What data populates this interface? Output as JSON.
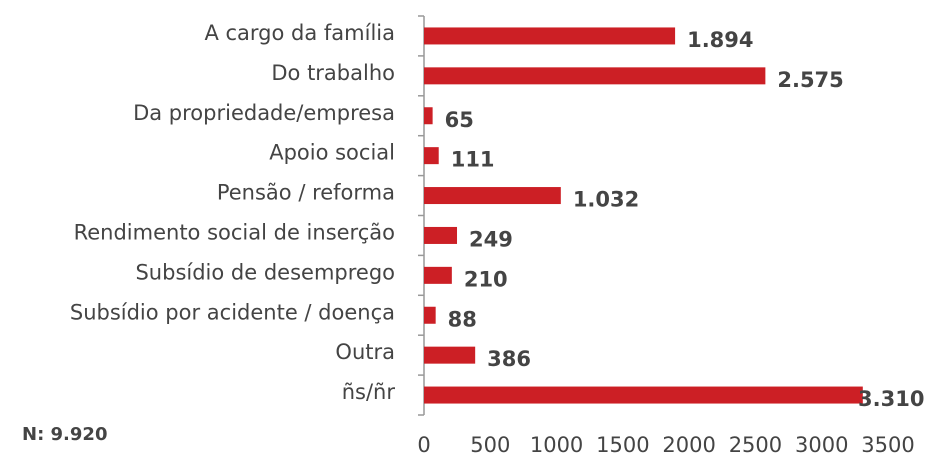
{
  "chart_data": {
    "type": "bar",
    "orientation": "horizontal",
    "categories": [
      "A cargo da família",
      "Do trabalho",
      "Da propriedade/empresa",
      "Apoio social",
      "Pensão / reforma",
      "Rendimento social de inserção",
      "Subsídio de desemprego",
      "Subsídio por acidente / doença",
      "Outra",
      "ñs/ñr"
    ],
    "values": [
      1894,
      2575,
      65,
      111,
      1032,
      249,
      210,
      88,
      386,
      3310
    ],
    "value_labels": [
      "1.894",
      "2.575",
      "65",
      "111",
      "1.032",
      "249",
      "210",
      "88",
      "386",
      "3.310"
    ],
    "color": "#cc1f25",
    "xlim": [
      0,
      3500
    ],
    "xticks": [
      0,
      500,
      1000,
      1500,
      2000,
      2500,
      3000,
      3500
    ],
    "annotation": "N: 9.920"
  }
}
